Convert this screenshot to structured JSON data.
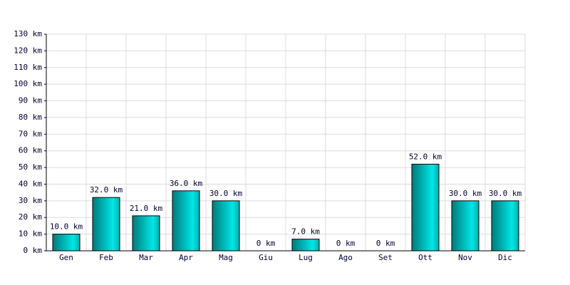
{
  "chart_data": {
    "type": "bar",
    "categories": [
      "Gen",
      "Feb",
      "Mar",
      "Apr",
      "Mag",
      "Giu",
      "Lug",
      "Ago",
      "Set",
      "Ott",
      "Nov",
      "Dic"
    ],
    "values": [
      10,
      32,
      21,
      36,
      30,
      0,
      7,
      0,
      0,
      52,
      30,
      30
    ],
    "value_labels": [
      "10.0 km",
      "32.0 km",
      "21.0 km",
      "36.0 km",
      "30.0 km",
      "0 km",
      "7.0 km",
      "0 km",
      "0 km",
      "52.0 km",
      "30.0 km",
      "30.0 km"
    ],
    "color": "#00e6e6",
    "ylim": [
      0,
      130
    ],
    "yticks": [
      {
        "value": 0,
        "label": "0 km"
      },
      {
        "value": 10,
        "label": "10 km"
      },
      {
        "value": 20,
        "label": "20 km"
      },
      {
        "value": 30,
        "label": "30 km"
      },
      {
        "value": 40,
        "label": "40 km"
      },
      {
        "value": 50,
        "label": "50 km"
      },
      {
        "value": 60,
        "label": "60 km"
      },
      {
        "value": 70,
        "label": "70 km"
      },
      {
        "value": 80,
        "label": "80 km"
      },
      {
        "value": 90,
        "label": "90 km"
      },
      {
        "value": 100,
        "label": "100 km"
      },
      {
        "value": 110,
        "label": "110 km"
      },
      {
        "value": 120,
        "label": "120 km"
      },
      {
        "value": 130,
        "label": "130 km"
      }
    ],
    "grid": true
  }
}
